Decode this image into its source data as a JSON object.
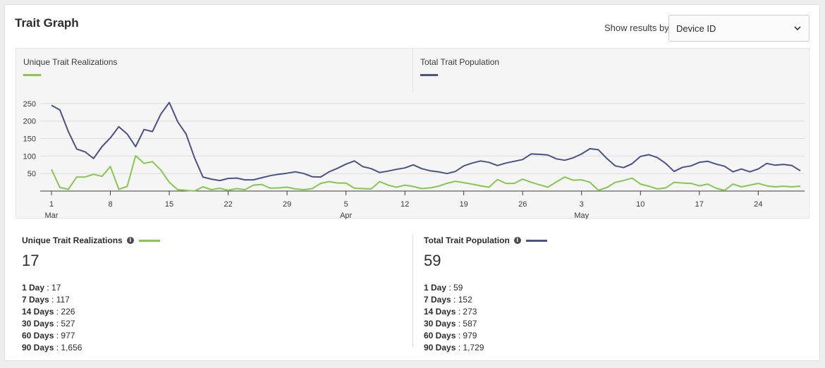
{
  "header": {
    "title": "Trait Graph",
    "show_label": "Show results by:",
    "select_value": "Device ID"
  },
  "legend": {
    "left_label": "Unique Trait Realizations",
    "right_label": "Total Trait Population"
  },
  "colors": {
    "green": "#86c84f",
    "navy": "#4a5288"
  },
  "chart_data": {
    "type": "line",
    "ylim": [
      0,
      270
    ],
    "yticks": [
      50,
      100,
      150,
      200,
      250
    ],
    "xticks": [
      {
        "i": 0,
        "day": "1",
        "month": "Mar"
      },
      {
        "i": 7,
        "day": "8",
        "month": ""
      },
      {
        "i": 14,
        "day": "15",
        "month": ""
      },
      {
        "i": 21,
        "day": "22",
        "month": ""
      },
      {
        "i": 28,
        "day": "29",
        "month": ""
      },
      {
        "i": 35,
        "day": "5",
        "month": "Apr"
      },
      {
        "i": 42,
        "day": "12",
        "month": ""
      },
      {
        "i": 49,
        "day": "19",
        "month": ""
      },
      {
        "i": 56,
        "day": "26",
        "month": ""
      },
      {
        "i": 63,
        "day": "3",
        "month": "May"
      },
      {
        "i": 70,
        "day": "10",
        "month": ""
      },
      {
        "i": 77,
        "day": "17",
        "month": ""
      },
      {
        "i": 84,
        "day": "24",
        "month": ""
      }
    ],
    "series": [
      {
        "name": "Total Trait Population",
        "color": "#4a5288",
        "values": [
          245,
          232,
          170,
          120,
          112,
          93,
          127,
          152,
          184,
          163,
          127,
          176,
          170,
          220,
          253,
          198,
          163,
          95,
          40,
          34,
          30,
          36,
          37,
          32,
          32,
          38,
          44,
          48,
          51,
          55,
          50,
          41,
          40,
          55,
          65,
          77,
          86,
          70,
          64,
          53,
          57,
          62,
          66,
          75,
          64,
          58,
          55,
          50,
          56,
          72,
          80,
          86,
          82,
          73,
          80,
          85,
          90,
          106,
          105,
          103,
          92,
          88,
          95,
          106,
          121,
          118,
          93,
          72,
          67,
          78,
          99,
          104,
          96,
          79,
          56,
          68,
          72,
          82,
          85,
          77,
          71,
          55,
          63,
          55,
          63,
          79,
          74,
          76,
          73,
          58
        ]
      },
      {
        "name": "Unique Trait Realizations",
        "color": "#86c84f",
        "values": [
          62,
          10,
          5,
          40,
          40,
          48,
          42,
          70,
          5,
          13,
          101,
          79,
          84,
          60,
          25,
          4,
          2,
          0,
          12,
          4,
          8,
          2,
          7,
          4,
          17,
          19,
          8,
          9,
          11,
          6,
          4,
          7,
          22,
          27,
          23,
          23,
          8,
          7,
          6,
          27,
          17,
          11,
          17,
          13,
          7,
          9,
          14,
          22,
          28,
          24,
          20,
          15,
          11,
          33,
          22,
          22,
          34,
          25,
          18,
          11,
          26,
          40,
          31,
          32,
          25,
          2,
          10,
          25,
          30,
          37,
          20,
          14,
          6,
          9,
          25,
          23,
          22,
          15,
          20,
          8,
          2,
          20,
          12,
          17,
          22,
          15,
          12,
          14,
          12,
          14
        ]
      }
    ]
  },
  "stats": {
    "left": {
      "title": "Unique Trait Realizations",
      "value": "17",
      "rows": [
        {
          "label": "1 Day",
          "value": "17"
        },
        {
          "label": "7 Days",
          "value": "117"
        },
        {
          "label": "14 Days",
          "value": "226"
        },
        {
          "label": "30 Days",
          "value": "527"
        },
        {
          "label": "60 Days",
          "value": "977"
        },
        {
          "label": "90 Days",
          "value": "1,656"
        }
      ]
    },
    "right": {
      "title": "Total Trait Population",
      "value": "59",
      "rows": [
        {
          "label": "1 Day",
          "value": "59"
        },
        {
          "label": "7 Days",
          "value": "152"
        },
        {
          "label": "14 Days",
          "value": "273"
        },
        {
          "label": "30 Days",
          "value": "587"
        },
        {
          "label": "60 Days",
          "value": "979"
        },
        {
          "label": "90 Days",
          "value": "1,729"
        }
      ]
    }
  }
}
